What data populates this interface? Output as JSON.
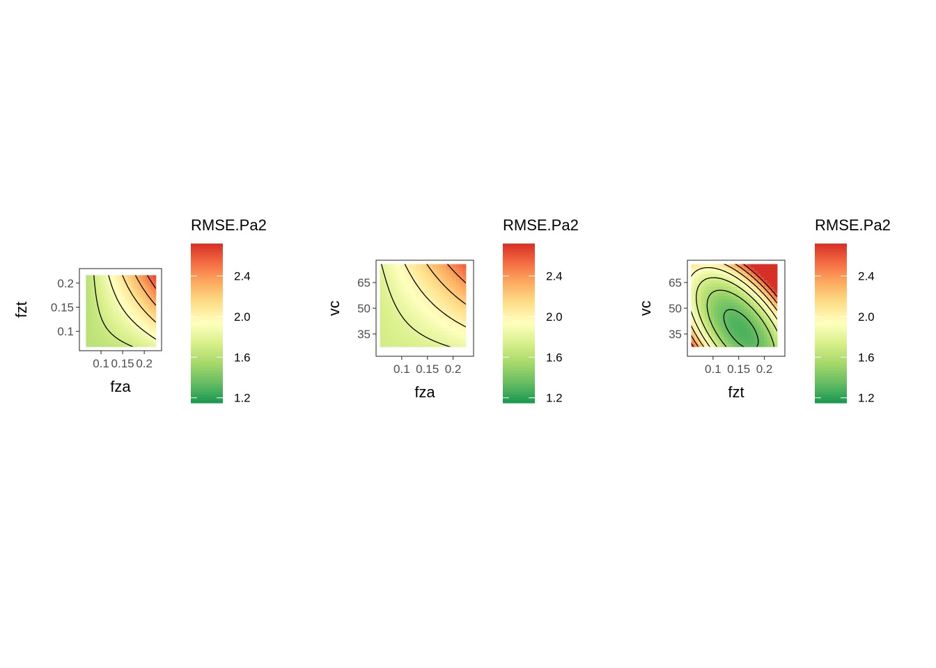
{
  "chart_data": [
    {
      "type": "heatmap",
      "title": "",
      "xlabel": "fza",
      "ylabel": "fzt",
      "x_ticks": [
        "0.1",
        "0.15",
        "0.2"
      ],
      "y_ticks": [
        "0.1",
        "0.15",
        "0.2"
      ],
      "xlim": [
        0.05,
        0.24
      ],
      "ylim": [
        0.06,
        0.23
      ],
      "tick_values_x": [
        0.1,
        0.15,
        0.2
      ],
      "tick_values_y": [
        0.1,
        0.15,
        0.2
      ],
      "value_range": [
        1.55,
        2.7
      ],
      "contours": true,
      "grid": false
    },
    {
      "type": "heatmap",
      "title": "",
      "xlabel": "fza",
      "ylabel": "vc",
      "x_ticks": [
        "0.1",
        "0.15",
        "0.2"
      ],
      "y_ticks": [
        "35",
        "50",
        "65"
      ],
      "xlim": [
        0.05,
        0.24
      ],
      "ylim": [
        22,
        78
      ],
      "tick_values_x": [
        0.1,
        0.15,
        0.2
      ],
      "tick_values_y": [
        35,
        50,
        65
      ],
      "value_range": [
        1.6,
        2.7
      ],
      "contours": true,
      "grid": false
    },
    {
      "type": "heatmap",
      "title": "",
      "xlabel": "fzt",
      "ylabel": "vc",
      "x_ticks": [
        "0.1",
        "0.15",
        "0.2"
      ],
      "y_ticks": [
        "35",
        "50",
        "65"
      ],
      "xlim": [
        0.05,
        0.24
      ],
      "ylim": [
        22,
        78
      ],
      "tick_values_x": [
        0.1,
        0.15,
        0.2
      ],
      "tick_values_y": [
        35,
        50,
        65
      ],
      "value_range": [
        1.25,
        2.7
      ],
      "contours": true,
      "grid": false
    }
  ],
  "legend": {
    "title": "RMSE.Pa2",
    "labels": [
      "1.2",
      "1.6",
      "2.0",
      "2.4"
    ],
    "values": [
      1.2,
      1.6,
      2.0,
      2.4
    ],
    "range": [
      1.15,
      2.72
    ],
    "palette": [
      "#1a9850",
      "#66bd63",
      "#a6d96a",
      "#d9ef8b",
      "#ffffbf",
      "#fee08b",
      "#fdae61",
      "#f46d43",
      "#d73027"
    ]
  }
}
